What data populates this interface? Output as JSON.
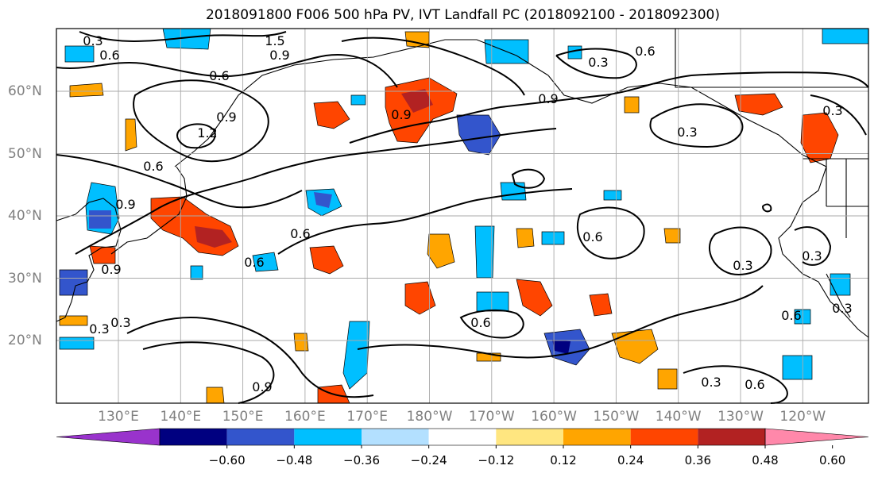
{
  "title": "2018091800 F006 500 hPa PV, IVT Landfall PC (2018092100 - 2018092300)",
  "lat_labels": [
    {
      "text": "60°N",
      "lat": 60
    },
    {
      "text": "50°N",
      "lat": 50
    },
    {
      "text": "40°N",
      "lat": 40
    },
    {
      "text": "30°N",
      "lat": 30
    },
    {
      "text": "20°N",
      "lat": 20
    }
  ],
  "lon_labels": [
    "130°E",
    "140°E",
    "150°E",
    "160°E",
    "170°E",
    "180°W",
    "170°W",
    "160°W",
    "150°W",
    "140°W",
    "130°W",
    "120°W"
  ],
  "colorbar": {
    "colors": [
      "#9933cc",
      "#000080",
      "#3355cc",
      "#00bfff",
      "#b3e0ff",
      "#ffffff",
      "#ffe680",
      "#ffa500",
      "#ff4500",
      "#b22222",
      "#ff88aa"
    ],
    "tick_labels": [
      "−0.60",
      "−0.48",
      "−0.36",
      "−0.24",
      "−0.12",
      "0.12",
      "0.24",
      "0.36",
      "0.48",
      "0.60"
    ]
  },
  "contour_labels": [
    "0.3",
    "0.6",
    "1.5",
    "0.9",
    "0.6",
    "0.9",
    "1.2",
    "0.9",
    "0.3",
    "0.9",
    "0.6",
    "0.9",
    "0.9",
    "0.6",
    "0.6",
    "0.3",
    "0.3",
    "0.6",
    "0.6",
    "0.3",
    "0.3",
    "0.6",
    "0.3",
    "0.3",
    "0.6",
    "0.9",
    "0.6",
    "0.3",
    "0.3"
  ],
  "colors": {
    "land_line": "#000000",
    "grid": "#aaaaaa",
    "label_grey": "#808080"
  }
}
